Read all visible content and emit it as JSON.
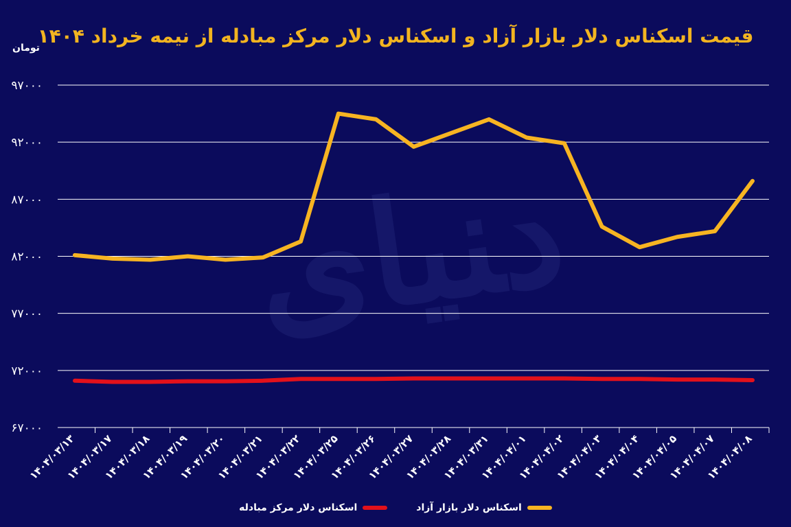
{
  "colors": {
    "background": "#0b0b5c",
    "free_market": "#f7b422",
    "exchange_center": "#e3111b",
    "title": "#f2b420",
    "grid": "#ffffff",
    "text": "#ffffff"
  },
  "chart_data": {
    "type": "line",
    "title": "قیمت اسکناس دلار بازار آزاد و اسکناس دلار مرکز مبادله از نیمه خرداد ۱۴۰۴",
    "ylabel": "تومان",
    "xlabel": "",
    "ylim": [
      67000,
      97000
    ],
    "yticks": [
      "۶۷۰۰۰",
      "۷۲۰۰۰",
      "۷۷۰۰۰",
      "۸۲۰۰۰",
      "۸۷۰۰۰",
      "۹۲۰۰۰",
      "۹۷۰۰۰"
    ],
    "ytick_values": [
      67000,
      72000,
      77000,
      82000,
      87000,
      92000,
      97000
    ],
    "grid": true,
    "legend_position": "bottom-center",
    "categories": [
      "۱۴۰۴/۰۳/۱۳",
      "۱۴۰۴/۰۳/۱۷",
      "۱۴۰۴/۰۳/۱۸",
      "۱۴۰۴/۰۳/۱۹",
      "۱۴۰۴/۰۳/۲۰",
      "۱۴۰۴/۰۳/۲۱",
      "۱۴۰۴/۰۳/۲۲",
      "۱۴۰۴/۰۳/۲۵",
      "۱۴۰۴/۰۳/۲۶",
      "۱۴۰۴/۰۳/۲۷",
      "۱۴۰۴/۰۳/۲۸",
      "۱۴۰۴/۰۳/۳۱",
      "۱۴۰۴/۰۴/۰۱",
      "۱۴۰۴/۰۴/۰۲",
      "۱۴۰۴/۰۴/۰۳",
      "۱۴۰۴/۰۴/۰۴",
      "۱۴۰۴/۰۴/۰۵",
      "۱۴۰۴/۰۴/۰۷",
      "۱۴۰۴/۰۴/۰۸"
    ],
    "series": [
      {
        "name": "اسکناس دلار بازار آزاد",
        "color": "#f7b422",
        "values": [
          82100,
          81800,
          81700,
          82000,
          81700,
          81900,
          83300,
          94500,
          94000,
          91600,
          92800,
          94000,
          92400,
          91900,
          84600,
          82800,
          83700,
          84200,
          88600
        ]
      },
      {
        "name": "اسکناس دلار مرکز مبادله",
        "color": "#e3111b",
        "values": [
          71100,
          71000,
          71000,
          71050,
          71050,
          71100,
          71250,
          71250,
          71250,
          71300,
          71300,
          71300,
          71300,
          71300,
          71250,
          71250,
          71200,
          71200,
          71150
        ]
      }
    ]
  }
}
